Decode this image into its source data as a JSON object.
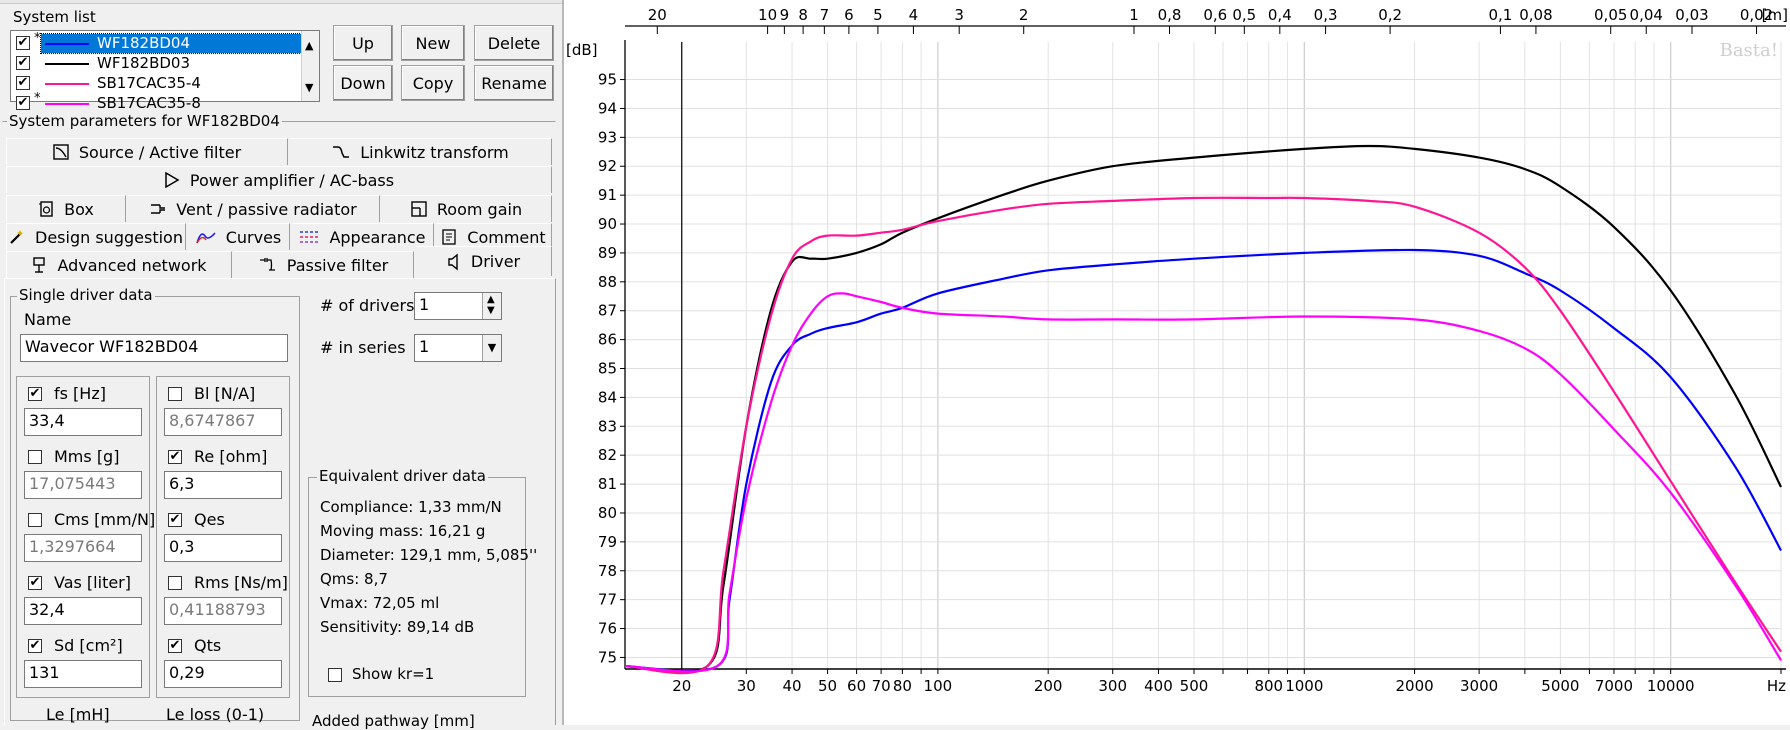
{
  "system_list": {
    "title": "System list",
    "items": [
      {
        "label": "WF182BD04",
        "color": "#0000ff",
        "checked": true,
        "star": true,
        "selected": true
      },
      {
        "label": "WF182BD03",
        "color": "#000000",
        "checked": true,
        "star": false,
        "selected": false
      },
      {
        "label": "SB17CAC35-4",
        "color": "#ff1493",
        "checked": true,
        "star": false,
        "selected": false
      },
      {
        "label": "SB17CAC35-8",
        "color": "#ff00ff",
        "checked": true,
        "star": true,
        "selected": false
      }
    ],
    "buttons": {
      "up": "Up",
      "new": "New",
      "delete": "Delete",
      "down": "Down",
      "copy": "Copy",
      "rename": "Rename"
    }
  },
  "params": {
    "title": "System parameters for WF182BD04",
    "tabs": {
      "source": "Source / Active filter",
      "linkwitz": "Linkwitz transform",
      "power": "Power amplifier / AC-bass",
      "box": "Box",
      "vent": "Vent / passive radiator",
      "room": "Room gain",
      "design": "Design suggestion",
      "curves": "Curves",
      "appearance": "Appearance",
      "comment": "Comment",
      "advanced": "Advanced network",
      "passive": "Passive filter",
      "driver": "Driver"
    }
  },
  "driver": {
    "group_title": "Single driver data",
    "name_label": "Name",
    "name_value": "Wavecor WF182BD04",
    "num_drivers_label": "# of drivers",
    "num_drivers_value": "1",
    "in_series_label": "# in series",
    "in_series_value": "1",
    "left_params": [
      {
        "label": "fs [Hz]",
        "value": "33,4",
        "checked": true,
        "enabled": true
      },
      {
        "label": "Mms [g]",
        "value": "17,075443",
        "checked": false,
        "enabled": false
      },
      {
        "label": "Cms [mm/N]",
        "value": "1,3297664",
        "checked": false,
        "enabled": false
      },
      {
        "label": "Vas [liter]",
        "value": "32,4",
        "checked": true,
        "enabled": true
      },
      {
        "label": "Sd [cm²]",
        "value": "131",
        "checked": true,
        "enabled": true
      }
    ],
    "right_params": [
      {
        "label": "Bl [N/A]",
        "value": "8,6747867",
        "checked": false,
        "enabled": false
      },
      {
        "label": "Re [ohm]",
        "value": "6,3",
        "checked": true,
        "enabled": true
      },
      {
        "label": "Qes",
        "value": "0,3",
        "checked": true,
        "enabled": true
      },
      {
        "label": "Rms [Ns/m]",
        "value": "0,41188793",
        "checked": false,
        "enabled": false
      },
      {
        "label": "Qts",
        "value": "0,29",
        "checked": true,
        "enabled": true
      }
    ],
    "le_label": "Le [mH]",
    "le_loss_label": "Le loss (0-1)",
    "added_pathway_label": "Added pathway [mm]",
    "equivalent": {
      "title": "Equivalent driver data",
      "compliance": "Compliance: 1,33 mm/N",
      "moving_mass": "Moving mass: 16,21 g",
      "diameter": "Diameter: 129,1 mm, 5,085''",
      "qms": "Qms: 8,7",
      "vmax": "Vmax: 72,05 ml",
      "sensitivity": "Sensitivity: 89,14 dB",
      "show_kr": "Show kr=1"
    }
  },
  "chart_data": {
    "type": "line",
    "y_unit_label": "[dB]",
    "x_unit_label": "Hz",
    "top_unit_label": "[m]",
    "watermark": "Basta!",
    "x_scale": "log",
    "xlim": [
      14,
      20000
    ],
    "ylim": [
      74.6,
      96.3
    ],
    "grid": true,
    "y_ticks": [
      75,
      76,
      77,
      78,
      79,
      80,
      81,
      82,
      83,
      84,
      85,
      86,
      87,
      88,
      89,
      90,
      91,
      92,
      93,
      94,
      95
    ],
    "x_ticks": [
      {
        "v": 20,
        "l": "20"
      },
      {
        "v": 30,
        "l": "30"
      },
      {
        "v": 40,
        "l": "40"
      },
      {
        "v": 50,
        "l": "50"
      },
      {
        "v": 60,
        "l": "60"
      },
      {
        "v": 70,
        "l": "70"
      },
      {
        "v": 80,
        "l": "80"
      },
      {
        "v": 100,
        "l": "100"
      },
      {
        "v": 200,
        "l": "200"
      },
      {
        "v": 300,
        "l": "300"
      },
      {
        "v": 400,
        "l": "400"
      },
      {
        "v": 500,
        "l": "500"
      },
      {
        "v": 800,
        "l": "800"
      },
      {
        "v": 1000,
        "l": "1000"
      },
      {
        "v": 2000,
        "l": "2000"
      },
      {
        "v": 3000,
        "l": "3000"
      },
      {
        "v": 5000,
        "l": "5000"
      },
      {
        "v": 7000,
        "l": "7000"
      },
      {
        "v": 10000,
        "l": "10000"
      }
    ],
    "top_ticks": [
      {
        "v": 20,
        "l": "20"
      },
      {
        "v": 10,
        "l": "10"
      },
      {
        "v": 9,
        "l": "9"
      },
      {
        "v": 8,
        "l": "8"
      },
      {
        "v": 7,
        "l": "7"
      },
      {
        "v": 6,
        "l": "6"
      },
      {
        "v": 5,
        "l": "5"
      },
      {
        "v": 4,
        "l": "4"
      },
      {
        "v": 3,
        "l": "3"
      },
      {
        "v": 2,
        "l": "2"
      },
      {
        "v": 1,
        "l": "1"
      },
      {
        "v": 0.8,
        "l": "0,8"
      },
      {
        "v": 0.6,
        "l": "0,6"
      },
      {
        "v": 0.5,
        "l": "0,5"
      },
      {
        "v": 0.4,
        "l": "0,4"
      },
      {
        "v": 0.3,
        "l": "0,3"
      },
      {
        "v": 0.2,
        "l": "0,2"
      },
      {
        "v": 0.1,
        "l": "0,1"
      },
      {
        "v": 0.08,
        "l": "0,08"
      },
      {
        "v": 0.05,
        "l": "0,05"
      },
      {
        "v": 0.04,
        "l": "0,04"
      },
      {
        "v": 0.03,
        "l": "0,03"
      },
      {
        "v": 0.02,
        "l": "0,02"
      }
    ],
    "series": [
      {
        "name": "WF182BD03",
        "color": "#000000",
        "x": [
          14,
          23.5,
          26,
          30,
          35,
          40,
          45,
          50,
          60,
          70,
          80,
          100,
          150,
          200,
          300,
          500,
          1000,
          1500,
          2000,
          3000,
          4000,
          5000,
          7000,
          10000,
          15000,
          20000
        ],
        "y": [
          74.7,
          74.7,
          77.5,
          83.0,
          87.0,
          88.7,
          88.8,
          88.8,
          89.0,
          89.3,
          89.7,
          90.2,
          91.0,
          91.5,
          92.0,
          92.3,
          92.6,
          92.7,
          92.6,
          92.3,
          91.9,
          91.3,
          89.9,
          87.7,
          84.1,
          80.9
        ]
      },
      {
        "name": "WF182BD04",
        "color": "#0000ff",
        "x": [
          14,
          25,
          27,
          30,
          35,
          40,
          45,
          50,
          60,
          70,
          80,
          100,
          150,
          200,
          300,
          500,
          1000,
          2000,
          3000,
          4000,
          5000,
          7000,
          10000,
          15000,
          20000
        ],
        "y": [
          74.7,
          74.7,
          77.0,
          81.0,
          84.5,
          85.8,
          86.2,
          86.4,
          86.6,
          86.9,
          87.1,
          87.6,
          88.1,
          88.4,
          88.6,
          88.8,
          89.0,
          89.1,
          88.9,
          88.3,
          87.7,
          86.4,
          84.7,
          81.6,
          78.7
        ]
      },
      {
        "name": "SB17CAC35-4",
        "color": "#ff1493",
        "x": [
          14,
          23.5,
          26,
          30,
          35,
          40,
          45,
          50,
          60,
          70,
          80,
          100,
          150,
          200,
          300,
          500,
          800,
          1000,
          1500,
          2000,
          3000,
          4000,
          5000,
          7000,
          10000,
          15000,
          20000
        ],
        "y": [
          74.7,
          74.7,
          78.0,
          83.0,
          86.8,
          88.8,
          89.4,
          89.6,
          89.6,
          89.7,
          89.8,
          90.1,
          90.5,
          90.7,
          90.8,
          90.9,
          90.9,
          90.9,
          90.8,
          90.6,
          89.7,
          88.5,
          87.0,
          84.2,
          81.1,
          77.6,
          75.2
        ]
      },
      {
        "name": "SB17CAC35-8",
        "color": "#ff00ff",
        "x": [
          14,
          25,
          27,
          30,
          35,
          40,
          45,
          50,
          55,
          60,
          70,
          80,
          100,
          150,
          200,
          300,
          500,
          1000,
          2000,
          3000,
          4000,
          5000,
          7000,
          10000,
          15000,
          20000
        ],
        "y": [
          74.7,
          74.7,
          77.2,
          80.5,
          83.8,
          85.8,
          86.9,
          87.5,
          87.6,
          87.5,
          87.3,
          87.1,
          86.9,
          86.8,
          86.7,
          86.7,
          86.7,
          86.8,
          86.7,
          86.3,
          85.7,
          84.8,
          82.9,
          80.7,
          77.5,
          74.9
        ]
      }
    ]
  }
}
